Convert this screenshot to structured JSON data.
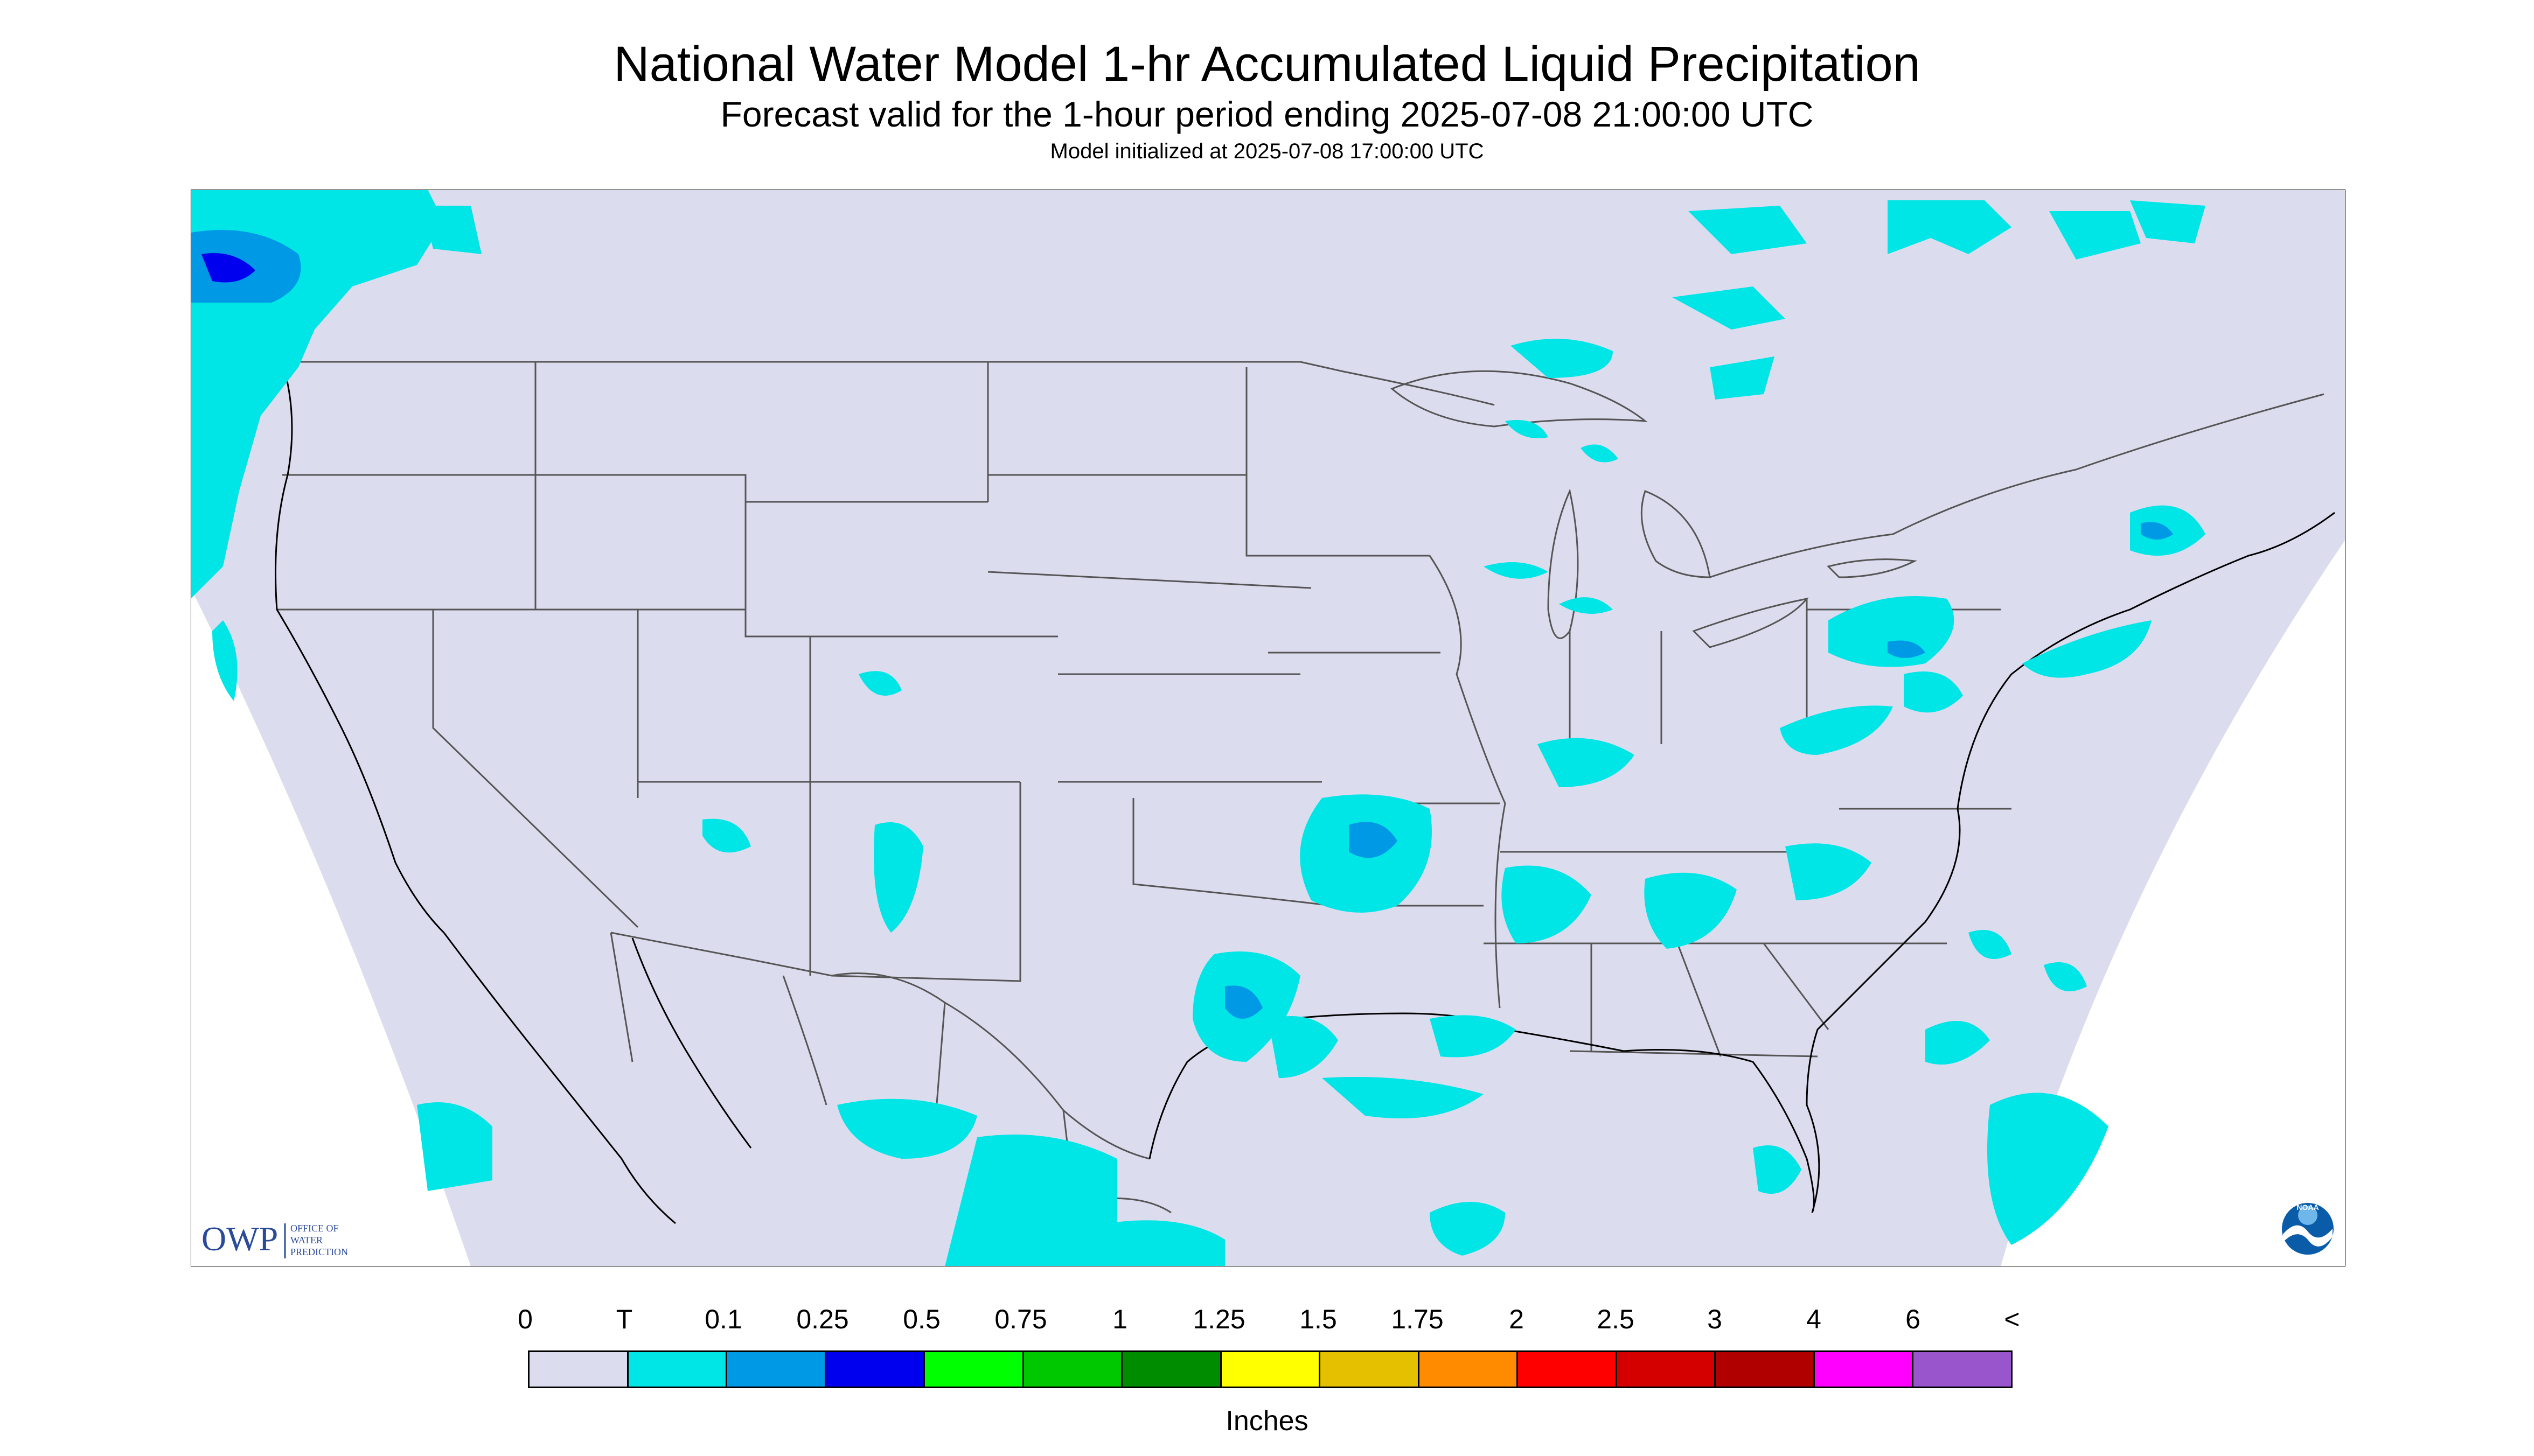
{
  "header": {
    "title": "National Water Model 1-hr Accumulated Liquid Precipitation",
    "subtitle": "Forecast valid for the 1-hour period ending 2025-07-08 21:00:00 UTC",
    "init": "Model initialized at 2025-07-08 17:00:00 UTC"
  },
  "logos": {
    "owp": {
      "abbr": "OWP",
      "line1": "OFFICE OF",
      "line2": "WATER",
      "line3": "PREDICTION"
    },
    "noaa": "NOAA"
  },
  "legend": {
    "labels": [
      "0",
      "T",
      "0.1",
      "0.25",
      "0.5",
      "0.75",
      "1",
      "1.25",
      "1.5",
      "1.75",
      "2",
      "2.5",
      "3",
      "4",
      "6",
      "<"
    ],
    "colors": [
      "#dcdcef",
      "#00e5e5",
      "#0099e5",
      "#0000ee",
      "#00ff00",
      "#00c800",
      "#008c00",
      "#ffff00",
      "#e5c000",
      "#ff8c00",
      "#ff0000",
      "#d40000",
      "#b00000",
      "#ff00ff",
      "#9955cc"
    ],
    "units": "Inches"
  },
  "colors": {
    "background": "#dcdcef",
    "trace": "#00e5e5",
    "light": "#0099e5",
    "moderate": "#0000ee",
    "borders": "#555555",
    "coast": "#000000"
  }
}
